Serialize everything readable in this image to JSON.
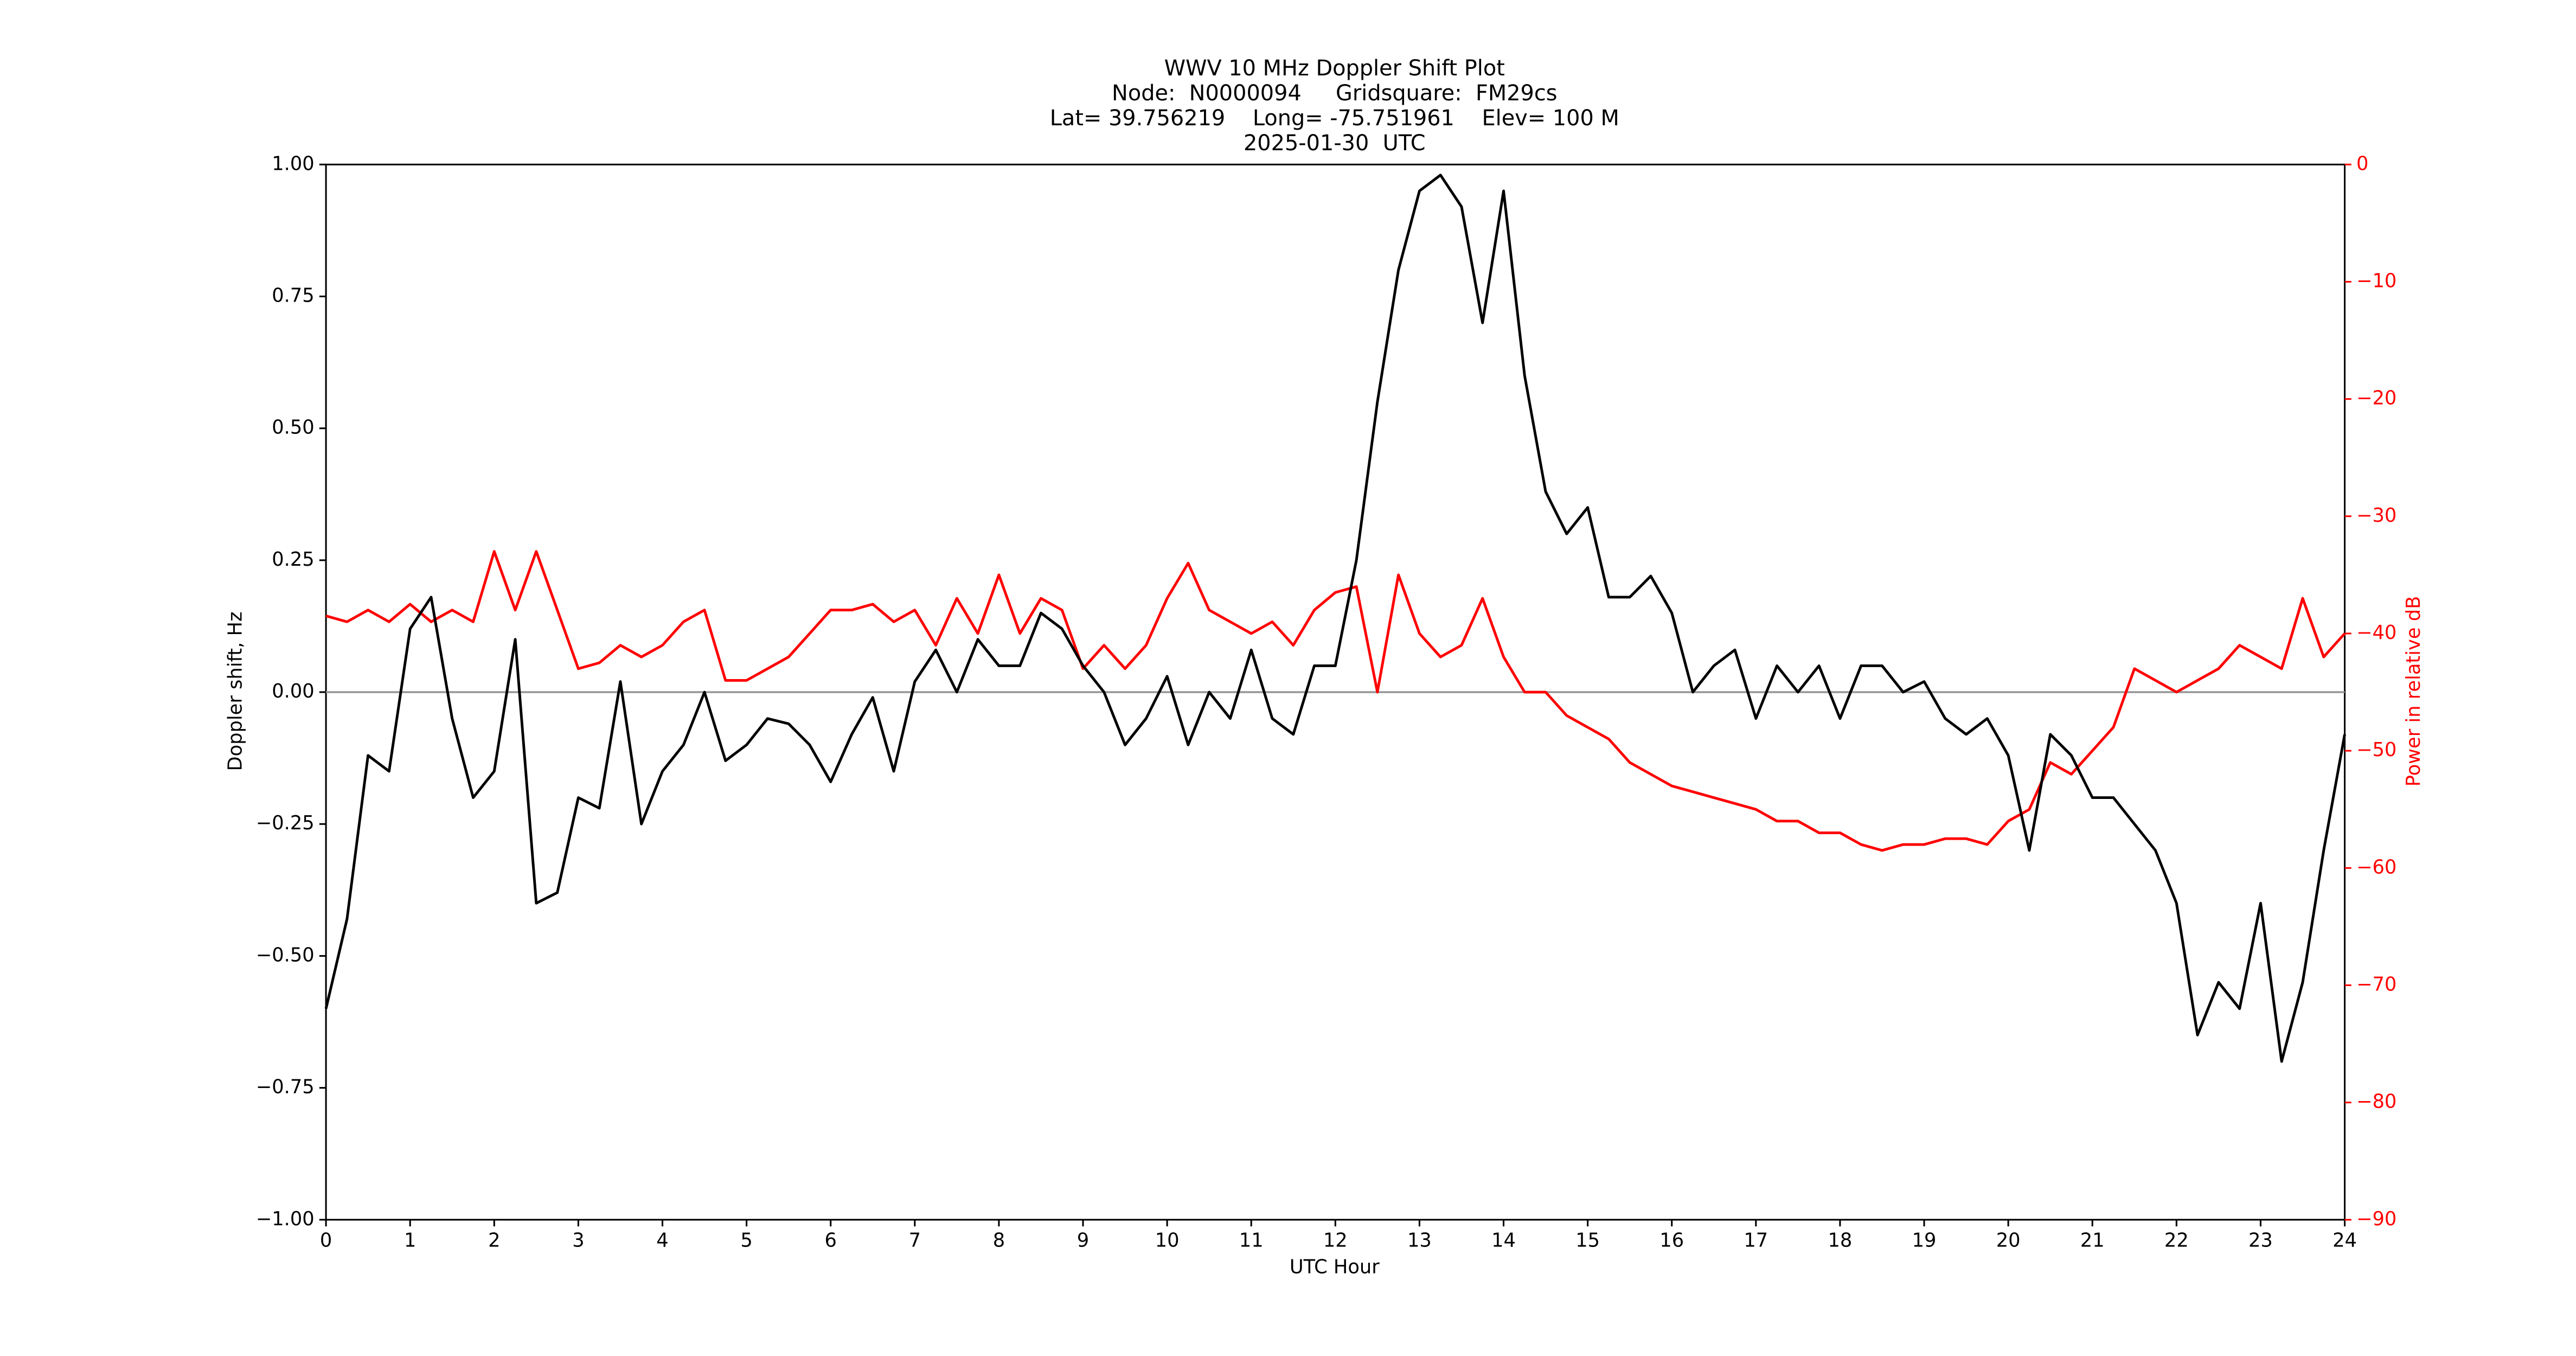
{
  "chart_data": {
    "type": "line",
    "title": [
      "WWV 10 MHz Doppler Shift Plot",
      "Node:  N0000094     Gridsquare:  FM29cs",
      "Lat= 39.756219    Long= -75.751961    Elev= 100 M",
      "2025-01-30  UTC"
    ],
    "xlabel": "UTC Hour",
    "ylabel": "Doppler shift, Hz",
    "y2label": "Power in relative dB",
    "xlim": [
      0,
      24
    ],
    "xticks": [
      0,
      1,
      2,
      3,
      4,
      5,
      6,
      7,
      8,
      9,
      10,
      11,
      12,
      13,
      14,
      15,
      16,
      17,
      18,
      19,
      20,
      21,
      22,
      23,
      24
    ],
    "ylim": [
      -1,
      1
    ],
    "yticks": [
      {
        "value": -1,
        "label": "−1.00"
      },
      {
        "value": -0.75,
        "label": "−0.75"
      },
      {
        "value": -0.5,
        "label": "−0.50"
      },
      {
        "value": -0.25,
        "label": "−0.25"
      },
      {
        "value": 0,
        "label": "0.00"
      },
      {
        "value": 0.25,
        "label": "0.25"
      },
      {
        "value": 0.5,
        "label": "0.50"
      },
      {
        "value": 0.75,
        "label": "0.75"
      },
      {
        "value": 1,
        "label": "1.00"
      }
    ],
    "y2lim": [
      -90,
      0
    ],
    "y2ticks": [
      {
        "value": -90,
        "label": "−90"
      },
      {
        "value": -80,
        "label": "−80"
      },
      {
        "value": -70,
        "label": "−70"
      },
      {
        "value": -60,
        "label": "−60"
      },
      {
        "value": -50,
        "label": "−50"
      },
      {
        "value": -40,
        "label": "−40"
      },
      {
        "value": -30,
        "label": "−30"
      },
      {
        "value": -20,
        "label": "−20"
      },
      {
        "value": -10,
        "label": "−10"
      },
      0
    ],
    "reference_line": 0,
    "reference_color": "#999999",
    "y2color": "#ff0000",
    "x": [
      0,
      0.25,
      0.5,
      0.75,
      1,
      1.25,
      1.5,
      1.75,
      2,
      2.25,
      2.5,
      2.75,
      3,
      3.25,
      3.5,
      3.75,
      4,
      4.25,
      4.5,
      4.75,
      5,
      5.25,
      5.5,
      5.75,
      6,
      6.25,
      6.5,
      6.75,
      7,
      7.25,
      7.5,
      7.75,
      8,
      8.25,
      8.5,
      8.75,
      9,
      9.25,
      9.5,
      9.75,
      10,
      10.25,
      10.5,
      10.75,
      11,
      11.25,
      11.5,
      11.75,
      12,
      12.25,
      12.5,
      12.75,
      13,
      13.25,
      13.5,
      13.75,
      14,
      14.25,
      14.5,
      14.75,
      15,
      15.25,
      15.5,
      15.75,
      16,
      16.25,
      16.5,
      16.75,
      17,
      17.25,
      17.5,
      17.75,
      18,
      18.25,
      18.5,
      18.75,
      19,
      19.25,
      19.5,
      19.75,
      20,
      20.25,
      20.5,
      20.75,
      21,
      21.25,
      21.5,
      21.75,
      22,
      22.25,
      22.5,
      22.75,
      23,
      23.25,
      23.5,
      23.75,
      24
    ],
    "series": [
      {
        "color": "#000000",
        "values": [
          -0.6,
          -0.43,
          -0.12,
          -0.15,
          0.12,
          0.18,
          -0.05,
          -0.2,
          -0.15,
          0.1,
          -0.4,
          -0.38,
          -0.2,
          -0.22,
          0.02,
          -0.25,
          -0.15,
          -0.1,
          0,
          -0.13,
          -0.1,
          -0.05,
          -0.06,
          -0.1,
          -0.17,
          -0.08,
          -0.01,
          -0.15,
          0.02,
          0.08,
          0,
          0.1,
          0.05,
          0.05,
          0.15,
          0.12,
          0.05,
          0,
          -0.1,
          -0.05,
          0.03,
          -0.1,
          0,
          -0.05,
          0.08,
          -0.05,
          -0.08,
          0.05,
          0.05,
          0.25,
          0.55,
          0.8,
          0.95,
          0.98,
          0.92,
          0.7,
          0.95,
          0.6,
          0.38,
          0.3,
          0.35,
          0.18,
          0.18,
          0.22,
          0.15,
          0,
          0.05,
          0.08,
          -0.05,
          0.05,
          0,
          0.05,
          -0.05,
          0.05,
          0.05,
          0,
          0.02,
          -0.05,
          -0.08,
          -0.05,
          -0.12,
          -0.3,
          -0.08,
          -0.12,
          -0.2,
          -0.2,
          -0.25,
          -0.3,
          -0.4,
          -0.65,
          -0.55,
          -0.6,
          -0.4,
          -0.7,
          -0.55,
          -0.3,
          -0.08
        ]
      },
      {
        "color": "#ff0000",
        "axis": "y2",
        "values": [
          -38.5,
          -39,
          -38,
          -39,
          -37.5,
          -39,
          -38,
          -39,
          -33,
          -38,
          -33,
          -38,
          -43,
          -42.5,
          -41,
          -42,
          -41,
          -39,
          -38,
          -44,
          -44,
          -43,
          -42,
          -40,
          -38,
          -38,
          -37.5,
          -39,
          -38,
          -41,
          -37,
          -40,
          -35,
          -40,
          -37,
          -38,
          -43,
          -41,
          -43,
          -41,
          -37,
          -34,
          -38,
          -39,
          -40,
          -39,
          -41,
          -38,
          -36.5,
          -36,
          -45,
          -35,
          -40,
          -42,
          -41,
          -37,
          -42,
          -45,
          -45,
          -47,
          -48,
          -49,
          -51,
          -52,
          -53,
          -53.5,
          -54,
          -54.5,
          -55,
          -56,
          -56,
          -57,
          -57,
          -58,
          -58.5,
          -58,
          -58,
          -57.5,
          -57.5,
          -58,
          -56,
          -55,
          -51,
          -52,
          -50,
          -48,
          -43,
          -44,
          -45,
          -44,
          -43,
          -41,
          -42,
          -43,
          -37,
          -42,
          -40
        ]
      }
    ]
  }
}
